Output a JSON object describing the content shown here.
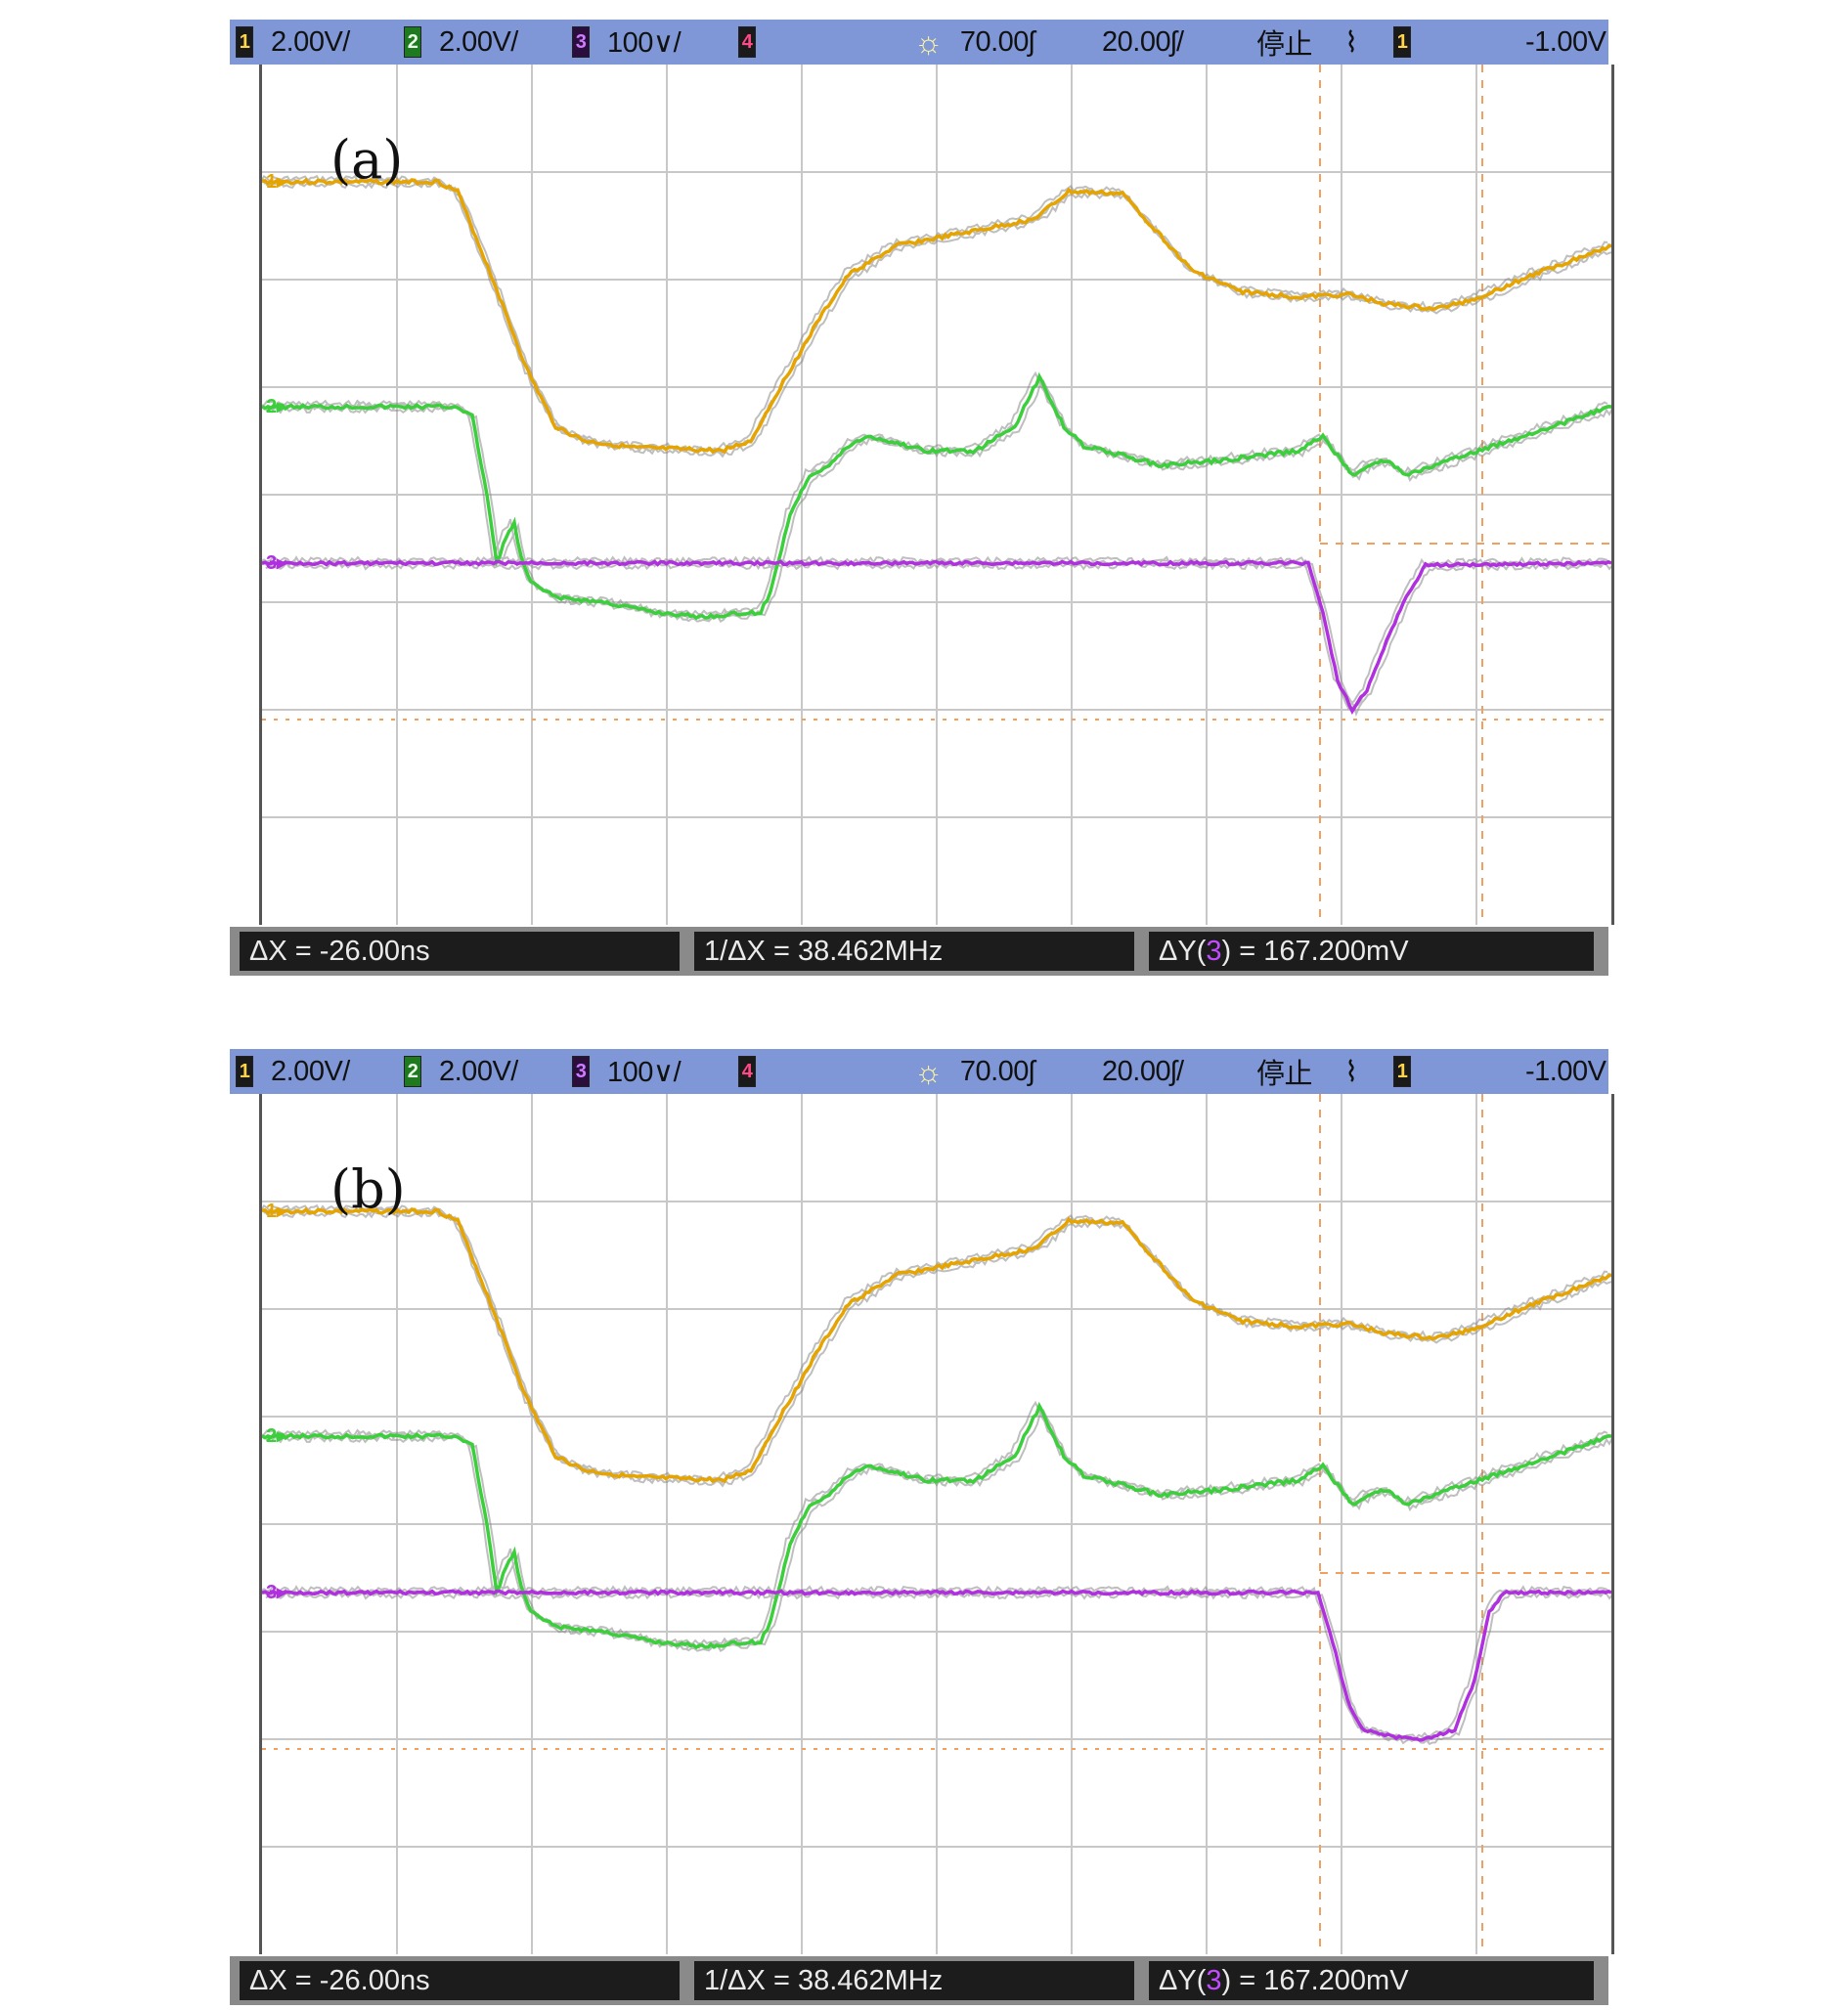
{
  "panels": [
    {
      "label": "(a)",
      "topbar": {
        "ch1_num": "1",
        "ch1_scale": "2.00V/",
        "ch2_num": "2",
        "ch2_scale": "2.00V/",
        "ch3_num": "3",
        "ch3_scale": "100∨/",
        "ch4_num": "4",
        "delay": "70.00ʃ",
        "timebase": "20.00ʃ/",
        "run_state": "停止",
        "trigger_source": "1",
        "trigger_level": "-1.00V"
      },
      "measurements": {
        "dx": "ΔX = -26.00ns",
        "inv_dx": "1/ΔX = 38.462MHz",
        "dy_prefix": "ΔY(",
        "dy_channel": "3",
        "dy_suffix": ") = 167.200mV"
      },
      "trace_labels": {
        "ch1": "1",
        "ch2": "2",
        "ch3": "3"
      }
    },
    {
      "label": "(b)",
      "topbar": {
        "ch1_num": "1",
        "ch1_scale": "2.00V/",
        "ch2_num": "2",
        "ch2_scale": "2.00V/",
        "ch3_num": "3",
        "ch3_scale": "100∨/",
        "ch4_num": "4",
        "delay": "70.00ʃ",
        "timebase": "20.00ʃ/",
        "run_state": "停止",
        "trigger_source": "1",
        "trigger_level": "-1.00V"
      },
      "measurements": {
        "dx": "ΔX = -26.00ns",
        "inv_dx": "1/ΔX = 38.462MHz",
        "dy_prefix": "ΔY(",
        "dy_channel": "3",
        "dy_suffix": ") = 167.200mV"
      },
      "trace_labels": {
        "ch1": "1",
        "ch2": "2",
        "ch3": "3"
      }
    }
  ],
  "colors": {
    "ch1": "#e6a400",
    "ch2": "#3bcf3b",
    "ch3": "#b030e0",
    "grid": "#c8c8c8",
    "cursor": "#f0a060"
  }
}
